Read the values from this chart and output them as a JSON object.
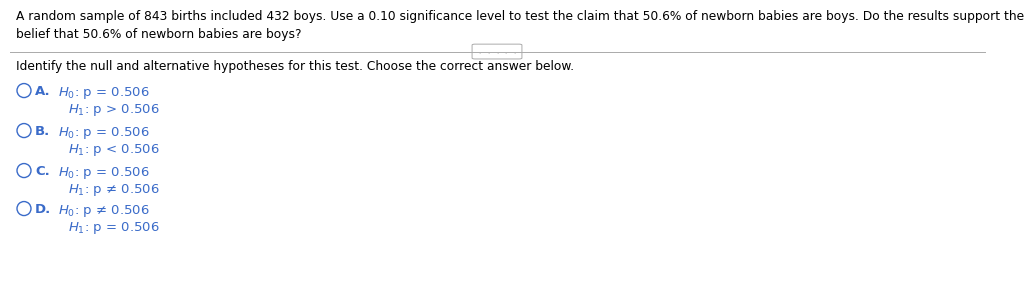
{
  "title_text": "A random sample of 843 births included 432 boys. Use a 0.10 significance level to test the claim that 50.6% of newborn babies are boys. Do the results support the\nbelief that 50.6% of newborn babies are boys?",
  "instruction": "Identify the null and alternative hypotheses for this test. Choose the correct answer below.",
  "options": [
    {
      "letter": "A.",
      "h0": "$H_0$: p = 0.506",
      "h1": "$H_1$: p > 0.506"
    },
    {
      "letter": "B.",
      "h0": "$H_0$: p = 0.506",
      "h1": "$H_1$: p < 0.506"
    },
    {
      "letter": "C.",
      "h0": "$H_0$: p = 0.506",
      "h1": "$H_1$: p ≠ 0.506"
    },
    {
      "letter": "D.",
      "h0": "$H_0$: p ≠ 0.506",
      "h1": "$H_1$: p = 0.506"
    }
  ],
  "text_color": "#000000",
  "option_color": "#3a6bc9",
  "circle_color": "#3a6bc9",
  "bg_color": "#ffffff",
  "separator_color": "#aaaaaa",
  "dots_color": "#aaaaaa",
  "title_fontsize": 8.8,
  "instruction_fontsize": 8.8,
  "option_letter_fontsize": 9.5,
  "option_text_fontsize": 9.5
}
